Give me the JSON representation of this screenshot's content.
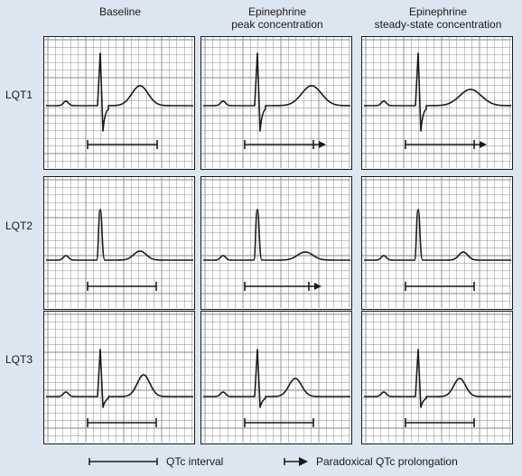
{
  "columns": [
    {
      "line1": "",
      "line2": "Baseline"
    },
    {
      "line1": "Epinephrine",
      "line2": "peak concentration"
    },
    {
      "line1": "Epinephrine",
      "line2": "steady-state concentration"
    }
  ],
  "rows": [
    {
      "label": "LQT1"
    },
    {
      "label": "LQT2"
    },
    {
      "label": "LQT3"
    }
  ],
  "legend": {
    "qtc_interval": "QTc interval",
    "paradoxical": "Paradoxical QTc prolongation"
  },
  "panels": [
    [
      {
        "interval": "qtc"
      },
      {
        "interval": "paradoxical"
      },
      {
        "interval": "paradoxical"
      }
    ],
    [
      {
        "interval": "qtc"
      },
      {
        "interval": "paradoxical"
      },
      {
        "interval": "qtc"
      }
    ],
    [
      {
        "interval": "qtc"
      },
      {
        "interval": "qtc"
      },
      {
        "interval": "qtc"
      }
    ]
  ],
  "colors": {
    "background": "#dce6f0",
    "grid": "#8a8a8a",
    "trace": "#1a1a1a",
    "panel": "#ffffff"
  }
}
